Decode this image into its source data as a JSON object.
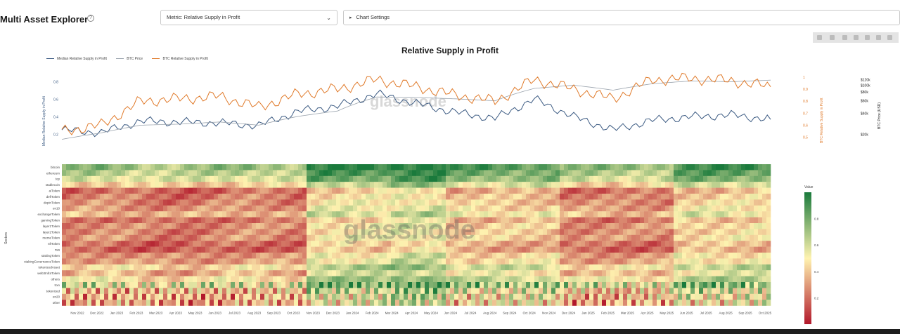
{
  "header": {
    "app_title": "Multi Asset Explorer",
    "help_icon": "?",
    "metric_select": "Metric: Relative Supply in Profit",
    "chart_settings": "Chart Settings"
  },
  "colors": {
    "median_line": "#3b5a82",
    "btc_price_line": "#9aa3ad",
    "btc_rsip_line": "#e07a2a",
    "heat_low": "#b2182b",
    "heat_mid": "#fff3b0",
    "heat_high": "#1a7a3c"
  },
  "chart_data": [
    {
      "type": "line",
      "title": "Relative Supply in Profit",
      "legend_position": "top-left",
      "legend": [
        "Median Relative Supply in Profit",
        "BTC Price",
        "BTC Relative Supply in Profit"
      ],
      "x": [
        "Nov 2022",
        "Jan 2023",
        "Mar 2023",
        "May 2023",
        "Jul 2023",
        "Sep 2023",
        "Nov 2023",
        "Jan 2024",
        "Mar 2024",
        "May 2024",
        "Jul 2024",
        "Sep 2024",
        "Nov 2024",
        "Jan 2025",
        "Mar 2025",
        "May 2025",
        "Jul 2025",
        "Sep 2025",
        "Oct 2025"
      ],
      "series": [
        {
          "name": "Median Relative Supply in Profit",
          "axis": "left",
          "values": [
            0.25,
            0.22,
            0.35,
            0.34,
            0.33,
            0.3,
            0.46,
            0.52,
            0.66,
            0.55,
            0.45,
            0.38,
            0.6,
            0.4,
            0.25,
            0.36,
            0.4,
            0.42,
            0.37
          ]
        },
        {
          "name": "BTC Price",
          "axis": "price",
          "values": [
            17000,
            21000,
            27000,
            28000,
            30000,
            27000,
            36000,
            43000,
            68000,
            67000,
            64000,
            60000,
            90000,
            100000,
            85000,
            105000,
            115000,
            112000,
            118000
          ]
        },
        {
          "name": "BTC Relative Supply in Profit",
          "axis": "right",
          "values": [
            0.55,
            0.6,
            0.8,
            0.82,
            0.84,
            0.75,
            0.86,
            0.9,
            0.98,
            0.92,
            0.85,
            0.8,
            0.98,
            0.9,
            0.82,
            0.98,
            0.99,
            0.97,
            0.92
          ]
        }
      ],
      "yaxis_left": {
        "label": "Median Relative Supply in Profit",
        "ticks": [
          "0.8",
          "0.6",
          "0.4",
          "0.2"
        ],
        "ylim": [
          0.1,
          0.85
        ]
      },
      "yaxis_right": {
        "label": "BTC Relative Supply in Profit",
        "ticks": [
          "1",
          "0.9",
          "0.8",
          "0.7",
          "0.6",
          "0.5"
        ],
        "ylim": [
          0.45,
          1.0
        ]
      },
      "yaxis_price": {
        "label": "BTC Price (USD)",
        "ticks": [
          "$120k",
          "$100k",
          "$80k",
          "$60k",
          "$40k",
          "$20k"
        ],
        "scale": "log",
        "ylim": [
          15000,
          130000
        ]
      },
      "watermark": "glassnode"
    },
    {
      "type": "heatmap",
      "ylabel": "Sectors",
      "legend_title": "Value",
      "rows": [
        "bitcoin",
        "ethereum",
        "top",
        "stablecoin",
        "aiToken",
        "defiToken",
        "depinToken",
        "en10",
        "exchangeToken",
        "gamingToken",
        "layer1Token",
        "layer2Token",
        "memeToken",
        "nftToken",
        "rwa",
        "stakingToken",
        "stakingGovernanceToken",
        "tokenizedAsset",
        "web3InfraToken",
        "others",
        "trxn",
        "tokenized",
        "en20",
        "other"
      ],
      "row_means": [
        0.85,
        0.78,
        0.72,
        0.55,
        0.32,
        0.36,
        0.38,
        0.42,
        0.5,
        0.34,
        0.4,
        0.38,
        0.4,
        0.32,
        0.3,
        0.42,
        0.44,
        0.58,
        0.48,
        0.6,
        0.7,
        0.52,
        0.48,
        0.45
      ],
      "x_ticks": [
        "Nov 2022",
        "Dec 2022",
        "Jan 2023",
        "Feb 2023",
        "Mar 2023",
        "Apr 2023",
        "May 2023",
        "Jun 2023",
        "Jul 2023",
        "Aug 2023",
        "Sep 2023",
        "Oct 2023",
        "Nov 2023",
        "Dec 2023",
        "Jan 2024",
        "Feb 2024",
        "Mar 2024",
        "Apr 2024",
        "May 2024",
        "Jun 2024",
        "Jul 2024",
        "Aug 2024",
        "Sep 2024",
        "Oct 2024",
        "Nov 2024",
        "Dec 2024",
        "Jan 2025",
        "Feb 2025",
        "Mar 2025",
        "Apr 2025",
        "May 2025",
        "Jun 2025",
        "Jul 2025",
        "Aug 2025",
        "Sep 2025",
        "Oct 2025"
      ],
      "colorbar_ticks": [
        "0.8",
        "0.6",
        "0.4",
        "0.2"
      ],
      "zlim": [
        0,
        1
      ],
      "watermark": "glassnode"
    }
  ]
}
